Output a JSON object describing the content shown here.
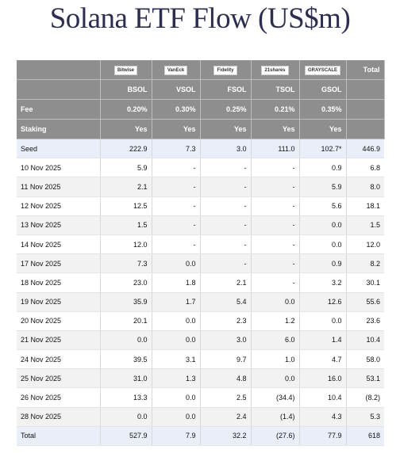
{
  "title": "Solana ETF Flow (US$m)",
  "header": {
    "logos": [
      "Bitwise",
      "VanEck",
      "Fidelity",
      "21shares",
      "GRAYSCALE"
    ],
    "total": "Total",
    "tickers": [
      "BSOL",
      "VSOL",
      "FSOL",
      "TSOL",
      "GSOL"
    ],
    "fee": {
      "label": "Fee",
      "values": [
        "0.20%",
        "0.30%",
        "0.25%",
        "0.21%",
        "0.35%"
      ]
    },
    "staking": {
      "label": "Staking",
      "values": [
        "Yes",
        "Yes",
        "Yes",
        "Yes",
        "Yes"
      ]
    }
  },
  "rows": [
    {
      "label": "Seed",
      "cells": [
        "222.9",
        "7.3",
        "3.0",
        "111.0",
        "102.7*",
        "446.9"
      ]
    },
    {
      "label": "10 Nov 2025",
      "cells": [
        "5.9",
        "-",
        "-",
        "-",
        "0.9",
        "6.8"
      ]
    },
    {
      "label": "11 Nov 2025",
      "cells": [
        "2.1",
        "-",
        "-",
        "-",
        "5.9",
        "8.0"
      ]
    },
    {
      "label": "12 Nov 2025",
      "cells": [
        "12.5",
        "-",
        "-",
        "-",
        "5.6",
        "18.1"
      ]
    },
    {
      "label": "13 Nov 2025",
      "cells": [
        "1.5",
        "-",
        "-",
        "-",
        "0.0",
        "1.5"
      ]
    },
    {
      "label": "14 Nov 2025",
      "cells": [
        "12.0",
        "-",
        "-",
        "-",
        "0.0",
        "12.0"
      ]
    },
    {
      "label": "17 Nov 2025",
      "cells": [
        "7.3",
        "0.0",
        "-",
        "-",
        "0.9",
        "8.2"
      ]
    },
    {
      "label": "18 Nov 2025",
      "cells": [
        "23.0",
        "1.8",
        "2.1",
        "-",
        "3.2",
        "30.1"
      ]
    },
    {
      "label": "19 Nov 2025",
      "cells": [
        "35.9",
        "1.7",
        "5.4",
        "0.0",
        "12.6",
        "55.6"
      ]
    },
    {
      "label": "20 Nov 2025",
      "cells": [
        "20.1",
        "0.0",
        "2.3",
        "1.2",
        "0.0",
        "23.6"
      ]
    },
    {
      "label": "21 Nov 2025",
      "cells": [
        "0.0",
        "0.0",
        "3.0",
        "6.0",
        "1.4",
        "10.4"
      ]
    },
    {
      "label": "24 Nov 2025",
      "cells": [
        "39.5",
        "3.1",
        "9.7",
        "1.0",
        "4.7",
        "58.0"
      ]
    },
    {
      "label": "25 Nov 2025",
      "cells": [
        "31.0",
        "1.3",
        "4.8",
        "0.0",
        "16.0",
        "53.1"
      ]
    },
    {
      "label": "26 Nov 2025",
      "cells": [
        "13.3",
        "0.0",
        "2.5",
        "(34.4)",
        "10.4",
        "(8.2)"
      ]
    },
    {
      "label": "28 Nov 2025",
      "cells": [
        "0.0",
        "0.0",
        "2.4",
        "(1.4)",
        "4.3",
        "5.3"
      ]
    },
    {
      "label": "Total",
      "cells": [
        "527.9",
        "7.9",
        "32.2",
        "(27.6)",
        "77.9",
        "618"
      ]
    }
  ]
}
